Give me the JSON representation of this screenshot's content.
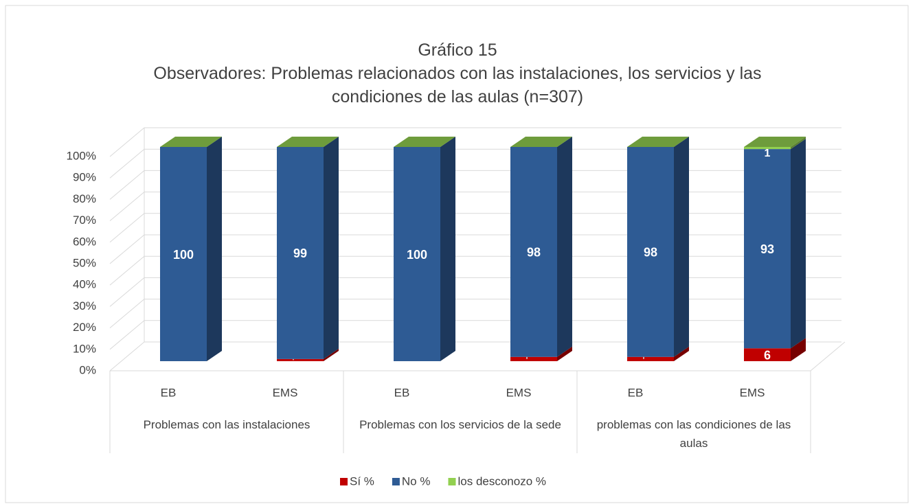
{
  "chart_data": {
    "type": "bar3d_stacked",
    "title": "Gráfico 15",
    "subtitle": "Observadores: Problemas relacionados con las instalaciones, los servicios y las condiciones de las aulas (n=307)",
    "categories": [
      "EB",
      "EMS",
      "EB",
      "EMS",
      "EB",
      "EMS"
    ],
    "groups": [
      "Problemas con las instalaciones",
      "Problemas con los servicios de la sede",
      "problemas con las condiciones de las aulas"
    ],
    "series": [
      {
        "name": "Sí %",
        "color": "#c00000",
        "values": [
          0,
          1,
          0,
          2,
          2,
          6
        ]
      },
      {
        "name": "No %",
        "color": "#2e5b94",
        "values": [
          100,
          99,
          100,
          98,
          98,
          93
        ]
      },
      {
        "name": "los desconozo %",
        "color": "#92d050",
        "values": [
          0,
          0,
          0,
          0,
          0,
          1
        ]
      }
    ],
    "ylim": [
      0,
      100
    ],
    "yticks": [
      {
        "value": 0,
        "label": "0%"
      },
      {
        "value": 10,
        "label": "10%"
      },
      {
        "value": 20,
        "label": "20%"
      },
      {
        "value": 30,
        "label": "30%"
      },
      {
        "value": 40,
        "label": "40%"
      },
      {
        "value": 50,
        "label": "50%"
      },
      {
        "value": 60,
        "label": "60%"
      },
      {
        "value": 70,
        "label": "70%"
      },
      {
        "value": 80,
        "label": "80%"
      },
      {
        "value": 90,
        "label": "90%"
      },
      {
        "value": 100,
        "label": "100%"
      }
    ],
    "grid": true,
    "legend": "bottom"
  }
}
